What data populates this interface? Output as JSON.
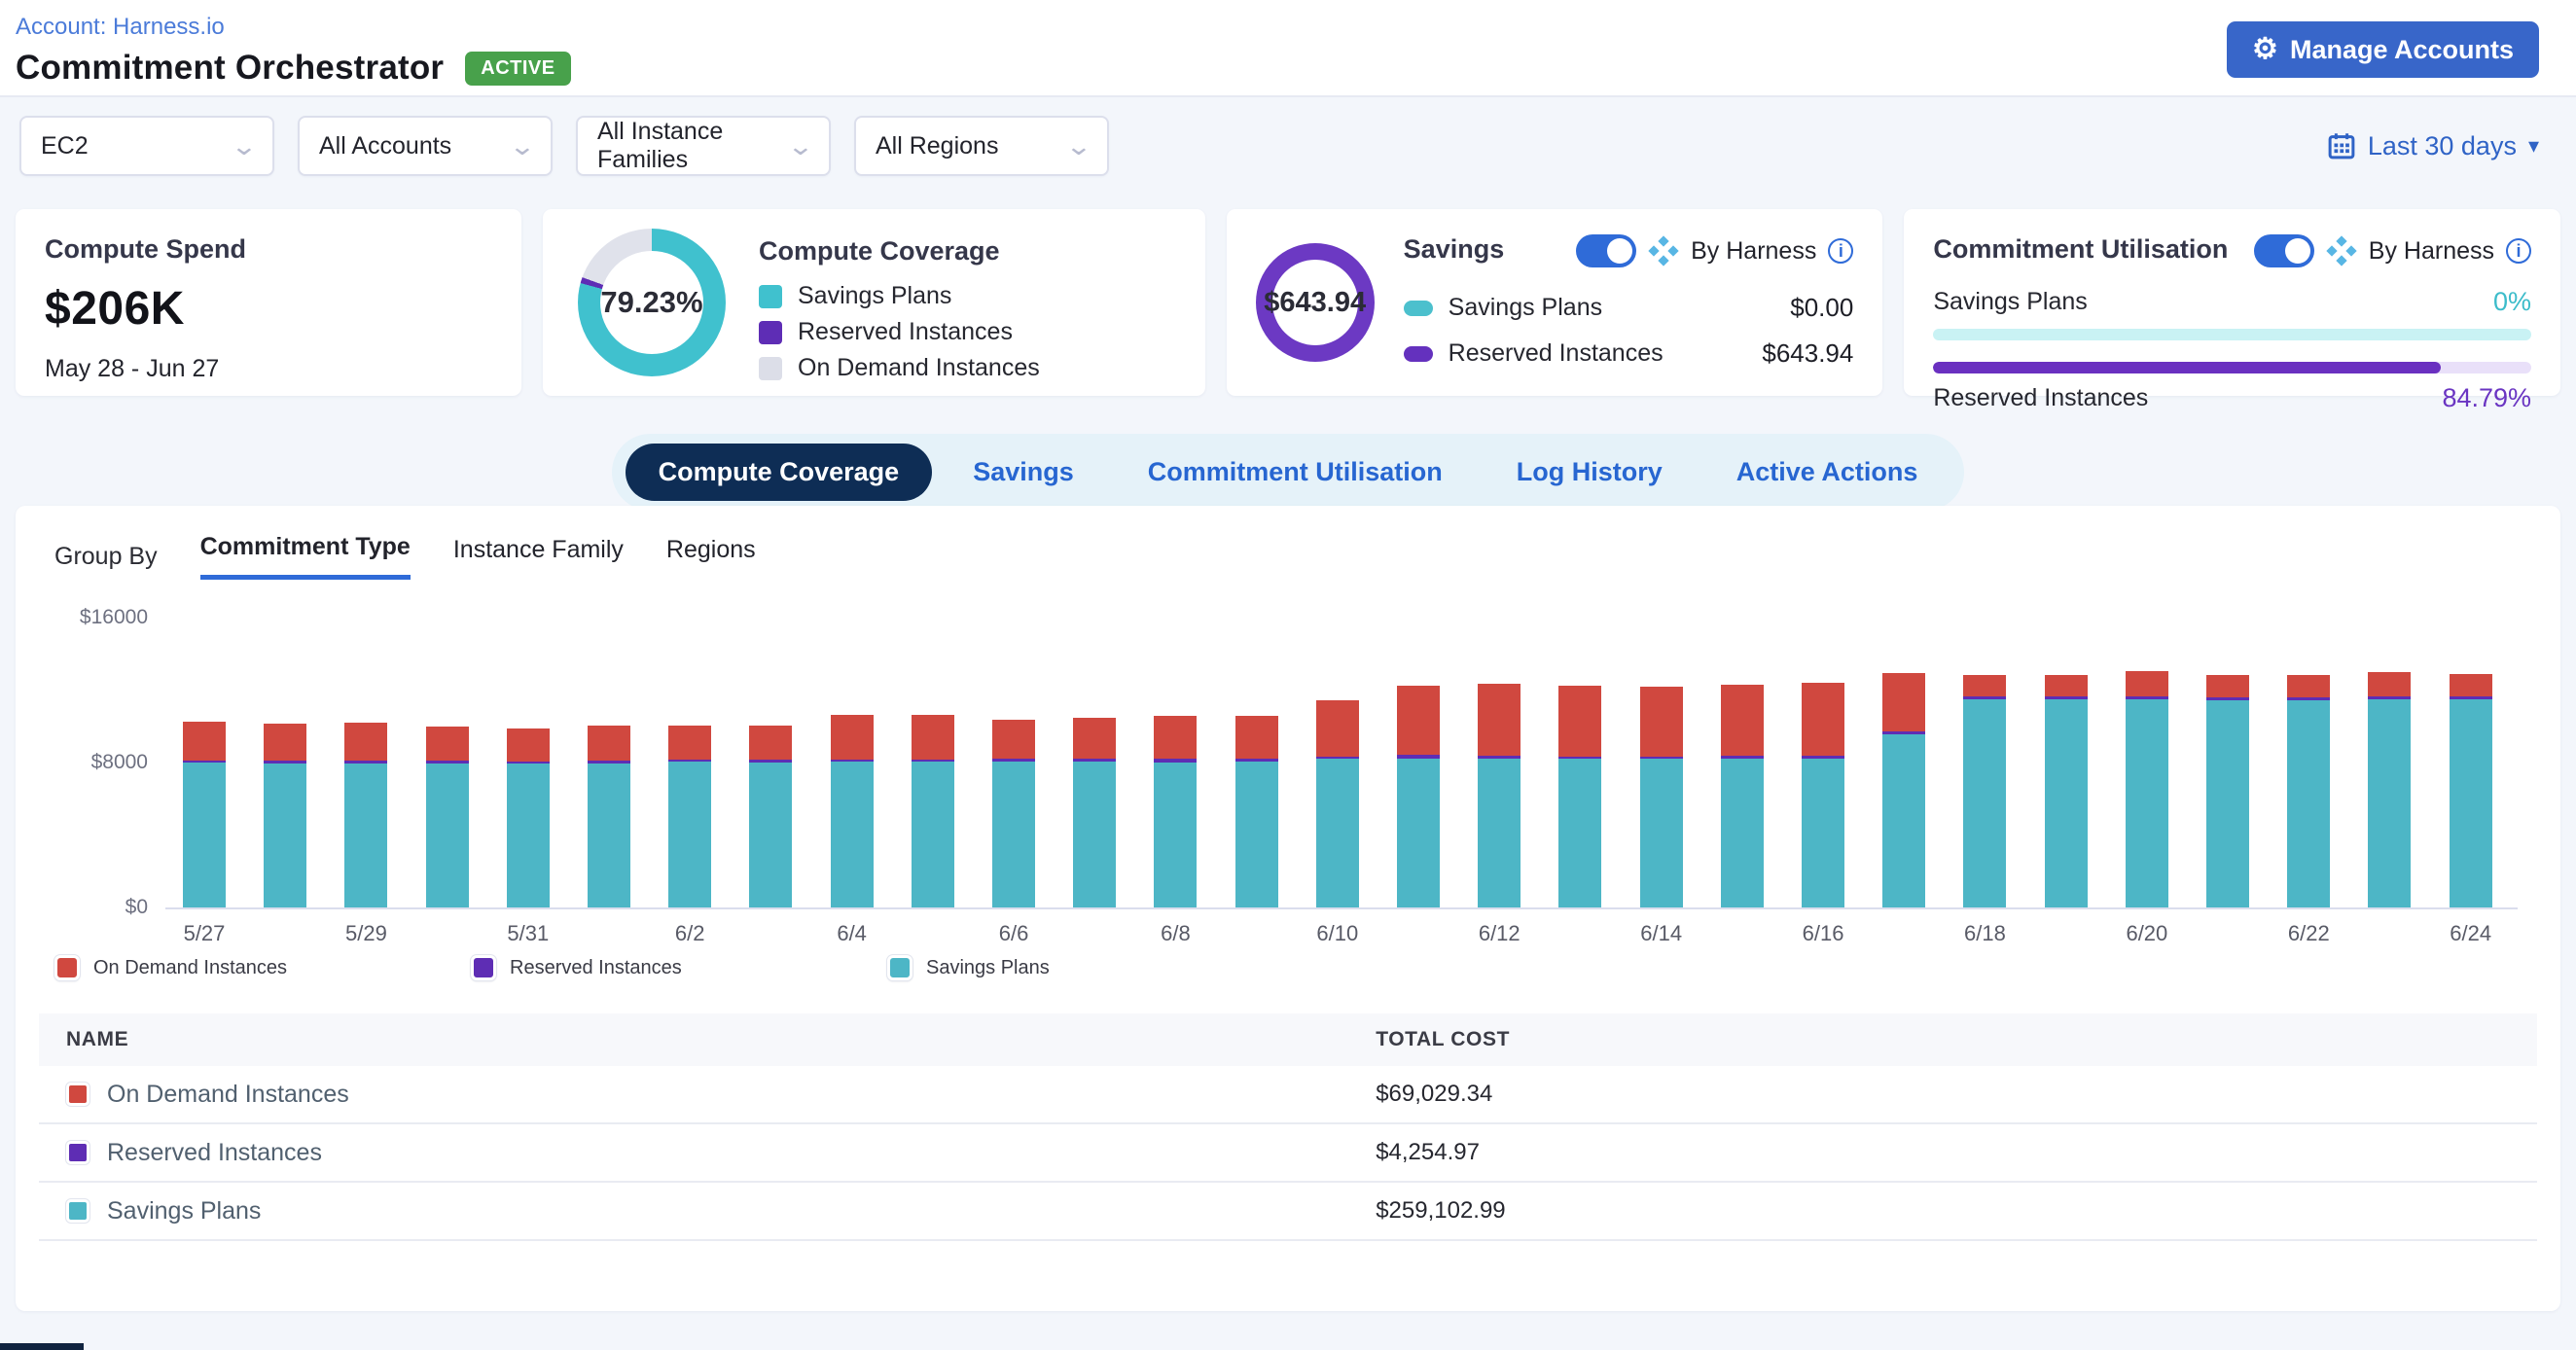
{
  "header": {
    "account_link": "Account: Harness.io",
    "title": "Commitment Orchestrator",
    "status_badge": "ACTIVE",
    "manage_accounts_label": "Manage Accounts"
  },
  "filters": {
    "service": "EC2",
    "accounts": "All Accounts",
    "instance_families": "All Instance Families",
    "regions": "All Regions",
    "date_range": "Last 30 days"
  },
  "cards": {
    "compute_spend": {
      "title": "Compute Spend",
      "value": "$206K",
      "period": "May 28 - Jun 27"
    },
    "compute_coverage": {
      "title": "Compute Coverage",
      "percent_label": "79.23%",
      "percent_value": 79.23,
      "reserved_sliver_value": 1.3,
      "legend": [
        {
          "label": "Savings Plans",
          "color": "#40c1ce"
        },
        {
          "label": "Reserved Instances",
          "color": "#5e2db5"
        },
        {
          "label": "On Demand Instances",
          "color": "#dcdee8"
        }
      ]
    },
    "savings": {
      "title": "Savings",
      "total": "$643.94",
      "toggle_label": "By Harness",
      "rows": [
        {
          "label": "Savings Plans",
          "color": "#4cc0cd",
          "value": "$0.00"
        },
        {
          "label": "Reserved Instances",
          "color": "#6431be",
          "value": "$643.94"
        }
      ]
    },
    "utilisation": {
      "title": "Commitment Utilisation",
      "toggle_label": "By Harness",
      "rows": [
        {
          "label": "Savings Plans",
          "percent_label": "0%",
          "percent_value": 0,
          "fill_color": "#3cbcca",
          "kind": "sp"
        },
        {
          "label": "Reserved Instances",
          "percent_label": "84.79%",
          "percent_value": 84.79,
          "fill_color": "#6a30c0",
          "kind": "ri"
        }
      ]
    }
  },
  "tabs": {
    "active_index": 0,
    "items": [
      "Compute Coverage",
      "Savings",
      "Commitment Utilisation",
      "Log History",
      "Active Actions"
    ]
  },
  "group_by": {
    "label": "Group By",
    "active": "Commitment Type",
    "options": [
      "Commitment Type",
      "Instance Family",
      "Regions"
    ]
  },
  "chart_data": {
    "type": "bar",
    "stacked": true,
    "title": "Compute coverage by commitment type, daily cost",
    "x": [
      "5/27",
      "5/28",
      "5/29",
      "5/30",
      "5/31",
      "6/1",
      "6/2",
      "6/3",
      "6/4",
      "6/5",
      "6/6",
      "6/7",
      "6/8",
      "6/9",
      "6/10",
      "6/11",
      "6/12",
      "6/13",
      "6/14",
      "6/15",
      "6/16",
      "6/17",
      "6/18",
      "6/19",
      "6/20",
      "6/21",
      "6/22",
      "6/23",
      "6/24"
    ],
    "x_tick_every": 2,
    "ylim": [
      0,
      16000
    ],
    "y_ticks": [
      {
        "value": 0,
        "label": "$0"
      },
      {
        "value": 8000,
        "label": "$8000"
      },
      {
        "value": 16000,
        "label": "$16000"
      }
    ],
    "grid": false,
    "legend_position": "bottom",
    "series": [
      {
        "name": "Savings Plans",
        "color": "#4db6c6",
        "values": [
          7980,
          7960,
          7970,
          7950,
          7940,
          7970,
          8030,
          8020,
          8060,
          8050,
          8040,
          8030,
          8020,
          8030,
          8200,
          8230,
          8220,
          8210,
          8200,
          8210,
          8230,
          9560,
          11480,
          11470,
          11500,
          11450,
          11450,
          11480,
          11470
        ]
      },
      {
        "name": "Reserved Instances",
        "color": "#5e2db4",
        "values": [
          130,
          130,
          140,
          140,
          110,
          130,
          150,
          130,
          120,
          140,
          160,
          180,
          170,
          160,
          140,
          180,
          170,
          130,
          130,
          170,
          150,
          150,
          170,
          160,
          140,
          170,
          170,
          160,
          160
        ]
      },
      {
        "name": "On Demand Instances",
        "color": "#d0483f",
        "values": [
          2150,
          2050,
          2100,
          1900,
          1850,
          1950,
          1850,
          1900,
          2450,
          2450,
          2150,
          2250,
          2400,
          2400,
          3100,
          3850,
          3950,
          3900,
          3850,
          3900,
          4000,
          3230,
          1180,
          1220,
          1430,
          1210,
          1230,
          1330,
          1280
        ]
      }
    ]
  },
  "chart_legend": [
    {
      "label": "On Demand Instances",
      "color": "#d0483f"
    },
    {
      "label": "Reserved Instances",
      "color": "#5e2db4"
    },
    {
      "label": "Savings Plans",
      "color": "#4db6c6"
    }
  ],
  "table": {
    "columns": [
      "NAME",
      "TOTAL COST"
    ],
    "rows": [
      {
        "name": "On Demand Instances",
        "color": "#d0483f",
        "total_cost": "$69,029.34"
      },
      {
        "name": "Reserved Instances",
        "color": "#5e2db4",
        "total_cost": "$4,254.97"
      },
      {
        "name": "Savings Plans",
        "color": "#4db6c6",
        "total_cost": "$259,102.99"
      }
    ]
  },
  "colors": {
    "accent_blue": "#3866c9",
    "navy_active_tab": "#0e2d55",
    "badge_green": "#48a14b",
    "donut_gray": "#e0e2eb",
    "ring_purple": "#6c39c3"
  }
}
